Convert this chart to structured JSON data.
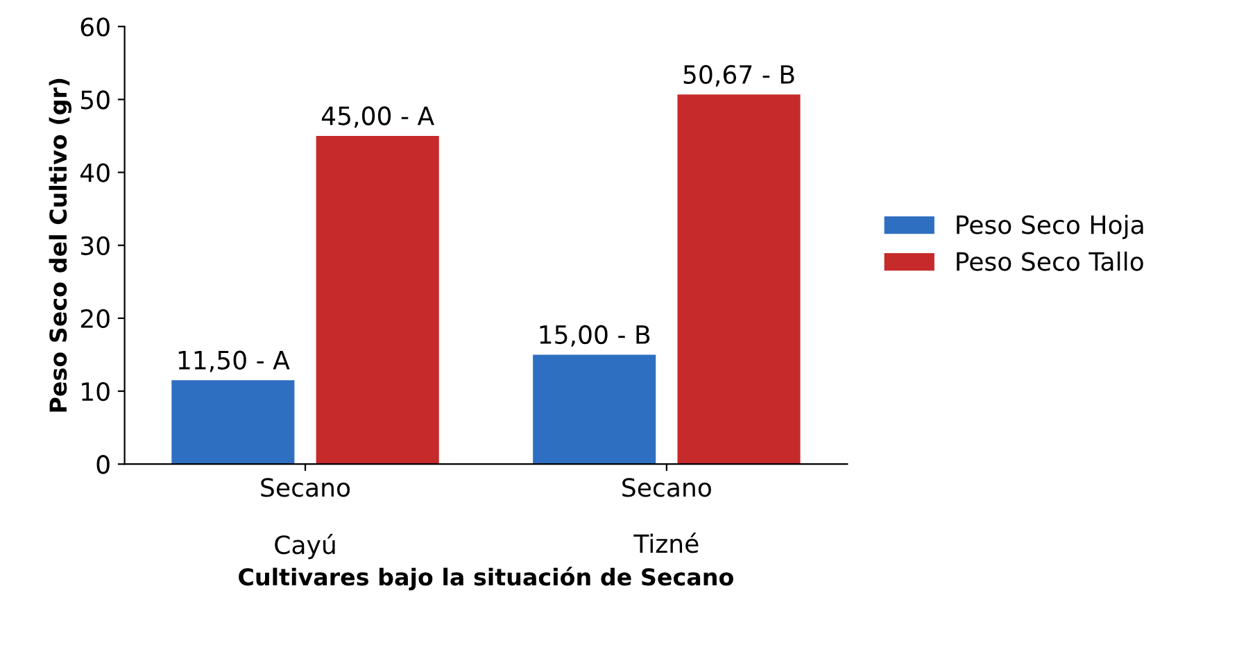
{
  "chart_data": {
    "type": "bar",
    "ylabel": "Peso Seco del Cultivo (gr)",
    "xlabel": "Cultivares bajo la situación de Secano",
    "categories": [
      "Secano\n\nCayú",
      "Secano\n\nTizné"
    ],
    "series": [
      {
        "name": "Peso Seco Hoja",
        "color": "#2f6fc1",
        "values": [
          11.5,
          15.0
        ],
        "value_labels": [
          "11,50 - A",
          "15,00 - B"
        ]
      },
      {
        "name": "Peso Seco Tallo",
        "color": "#c62a2a",
        "values": [
          45.0,
          50.67
        ],
        "value_labels": [
          "45,00 - A",
          "50,67 - B"
        ]
      }
    ],
    "ylim": [
      0,
      60
    ],
    "yticks": [
      0,
      10,
      20,
      30,
      40,
      50,
      60
    ],
    "grid": false,
    "legend": "right"
  }
}
